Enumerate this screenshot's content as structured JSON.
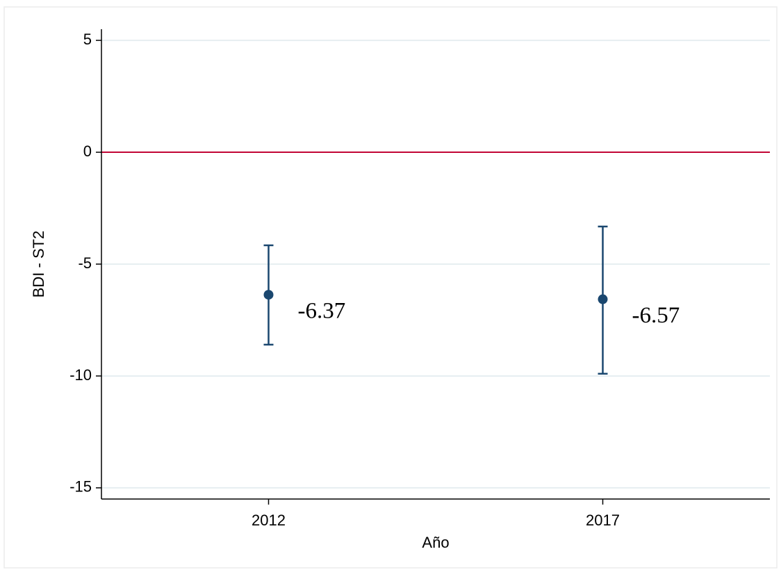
{
  "chart_data": {
    "type": "errorbar",
    "x_label": "Año",
    "y_label": "BDI - ST2",
    "x": [
      2012,
      2017
    ],
    "series": [
      {
        "color": "#1a476f",
        "values": [
          -6.37,
          -6.57
        ],
        "lower": [
          -8.6,
          -9.9
        ],
        "upper": [
          -4.16,
          -3.32
        ]
      }
    ],
    "xlim": [
      2009.5,
      2019.5
    ],
    "xticks": [
      2012,
      2017
    ],
    "ylim": [
      -15.5,
      5.5
    ],
    "yticks": [
      -15,
      -10,
      -5,
      0,
      5
    ],
    "grid": true,
    "grid_color": "#e6eef1",
    "reference_line": {
      "value": 0,
      "color": "#c10534"
    }
  }
}
